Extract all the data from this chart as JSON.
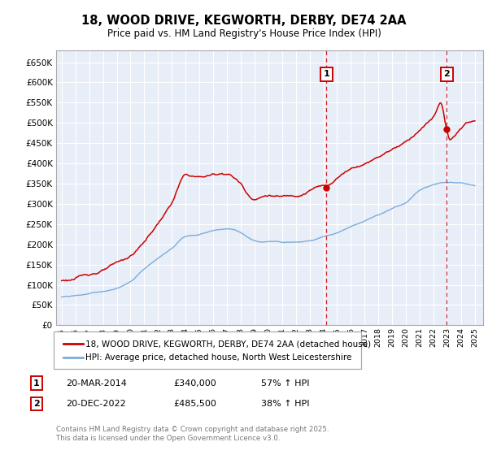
{
  "title_line1": "18, WOOD DRIVE, KEGWORTH, DERBY, DE74 2AA",
  "title_line2": "Price paid vs. HM Land Registry's House Price Index (HPI)",
  "legend_label1": "18, WOOD DRIVE, KEGWORTH, DERBY, DE74 2AA (detached house)",
  "legend_label2": "HPI: Average price, detached house, North West Leicestershire",
  "annotation1_date": "20-MAR-2014",
  "annotation1_price": "£340,000",
  "annotation1_hpi": "57% ↑ HPI",
  "annotation2_date": "20-DEC-2022",
  "annotation2_price": "£485,500",
  "annotation2_hpi": "38% ↑ HPI",
  "copyright_text": "Contains HM Land Registry data © Crown copyright and database right 2025.\nThis data is licensed under the Open Government Licence v3.0.",
  "red_color": "#cc0000",
  "blue_color": "#7aacda",
  "dashed_line_color": "#cc0000",
  "chart_bg_color": "#e8eef8",
  "grid_color": "#ffffff",
  "ylim_min": 0,
  "ylim_max": 680000,
  "sale1_year": 2014.22,
  "sale2_year": 2022.97,
  "sale1_price": 340000,
  "sale2_price": 485500,
  "red_keypoints_x": [
    1995,
    1996,
    1997,
    1998,
    1999,
    2000,
    2001,
    2002,
    2003,
    2004,
    2005,
    2006,
    2007,
    2007.5,
    2008,
    2008.5,
    2009,
    2009.5,
    2010,
    2011,
    2012,
    2013,
    2013.5,
    2014.22,
    2015,
    2016,
    2017,
    2018,
    2019,
    2020,
    2020.5,
    2021,
    2021.5,
    2022,
    2022.5,
    2022.97,
    2023.2,
    2023.5,
    2024,
    2025
  ],
  "red_keypoints_y": [
    110000,
    115000,
    125000,
    135000,
    148000,
    165000,
    200000,
    245000,
    295000,
    360000,
    355000,
    360000,
    365000,
    355000,
    340000,
    315000,
    305000,
    310000,
    315000,
    310000,
    315000,
    330000,
    338000,
    340000,
    360000,
    385000,
    400000,
    420000,
    440000,
    460000,
    475000,
    490000,
    505000,
    520000,
    555000,
    485500,
    460000,
    465000,
    490000,
    505000
  ],
  "blue_keypoints_x": [
    1995,
    1996,
    1997,
    1998,
    1999,
    2000,
    2001,
    2002,
    2003,
    2004,
    2005,
    2006,
    2007,
    2008,
    2008.5,
    2009,
    2009.5,
    2010,
    2011,
    2012,
    2013,
    2014.22,
    2015,
    2016,
    2017,
    2018,
    2019,
    2020,
    2021,
    2022,
    2022.97,
    2023,
    2024,
    2025
  ],
  "blue_keypoints_y": [
    70000,
    73000,
    78000,
    83000,
    90000,
    105000,
    135000,
    160000,
    185000,
    215000,
    220000,
    228000,
    232000,
    222000,
    210000,
    200000,
    197000,
    197000,
    198000,
    200000,
    205000,
    217000,
    225000,
    240000,
    255000,
    270000,
    285000,
    300000,
    330000,
    345000,
    352000,
    352000,
    350000,
    345000
  ]
}
